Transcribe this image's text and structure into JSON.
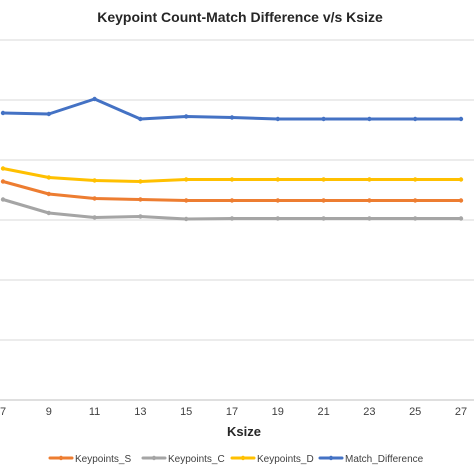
{
  "chart_data": {
    "type": "line",
    "title": "Keypoint Count-Match Difference v/s Ksize",
    "xlabel": "Ksize",
    "ylabel": "",
    "x": [
      7,
      9,
      11,
      13,
      15,
      17,
      19,
      21,
      23,
      25,
      27
    ],
    "x_tick_labels": [
      "7",
      "9",
      "11",
      "13",
      "15",
      "17",
      "19",
      "21",
      "23",
      "25",
      "27"
    ],
    "ylim": [
      0,
      7.2
    ],
    "grid": true,
    "legend_position": "bottom",
    "series": [
      {
        "name": "Keypoints_S",
        "color": "#ed7d31",
        "values": [
          4.37,
          4.12,
          4.03,
          4.01,
          3.99,
          3.99,
          3.99,
          3.99,
          3.99,
          3.99,
          3.99
        ]
      },
      {
        "name": "Keypoints_C",
        "color": "#a5a5a5",
        "values": [
          4.01,
          3.74,
          3.65,
          3.67,
          3.62,
          3.63,
          3.63,
          3.63,
          3.63,
          3.63,
          3.63
        ]
      },
      {
        "name": "Keypoints_D",
        "color": "#ffc000",
        "values": [
          4.63,
          4.45,
          4.39,
          4.37,
          4.41,
          4.41,
          4.41,
          4.41,
          4.41,
          4.41,
          4.41
        ]
      },
      {
        "name": "Match_Difference",
        "color": "#4472c4",
        "values": [
          5.74,
          5.72,
          6.02,
          5.62,
          5.67,
          5.65,
          5.62,
          5.62,
          5.62,
          5.62,
          5.62
        ]
      }
    ]
  }
}
